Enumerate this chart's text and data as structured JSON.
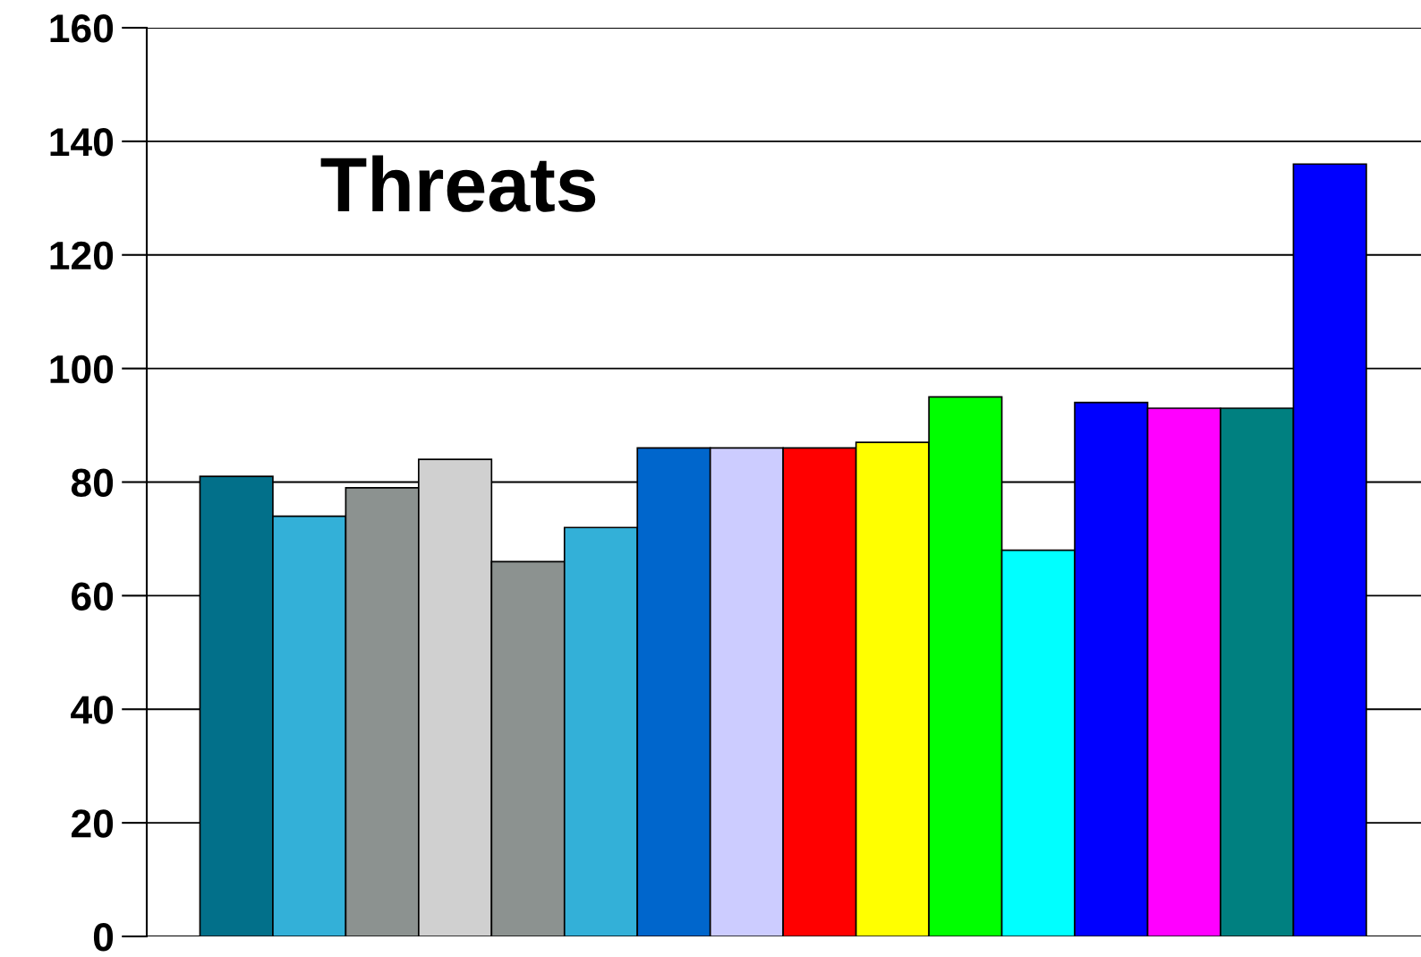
{
  "chart_data": {
    "type": "bar",
    "title": "Threats",
    "categories": [
      null,
      null,
      null,
      null,
      null,
      null,
      null,
      null,
      null,
      null,
      null,
      null,
      null,
      null,
      null,
      null
    ],
    "values": [
      81,
      74,
      79,
      84,
      66,
      72,
      86,
      86,
      86,
      87,
      95,
      68,
      94,
      93,
      93,
      136
    ],
    "colors": [
      "#02708a",
      "#33b0d8",
      "#8c9290",
      "#d0d0d0",
      "#8c9290",
      "#33b0d8",
      "#0066cc",
      "#ccccff",
      "#ff0000",
      "#ffff00",
      "#00ff00",
      "#00ffff",
      "#0000ff",
      "#ff00ff",
      "#008080",
      "#0000ff"
    ],
    "ylim": [
      0,
      160
    ],
    "yticks": [
      0,
      20,
      40,
      60,
      80,
      100,
      120,
      140,
      160
    ],
    "grid": "y",
    "tick_labels": "y"
  }
}
